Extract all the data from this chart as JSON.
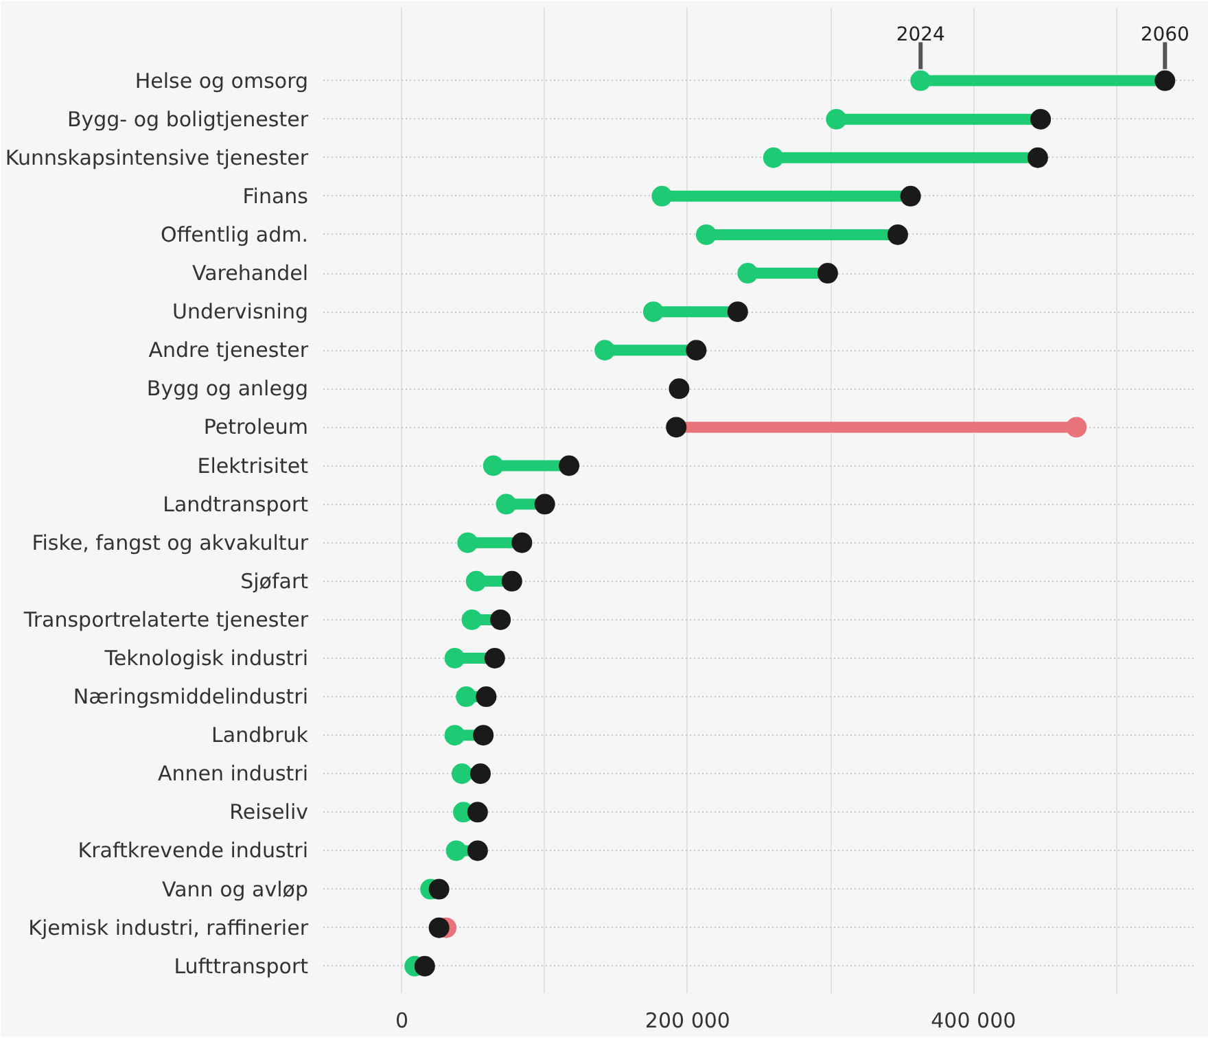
{
  "chart_data": {
    "type": "scatter",
    "categories": [
      "Helse og omsorg",
      "Bygg- og boligtjenester",
      "Kunnskapsintensive tjenester",
      "Finans",
      "Offentlig adm.",
      "Varehandel",
      "Undervisning",
      "Andre tjenester",
      "Bygg og anlegg",
      "Petroleum",
      "Elektrisitet",
      "Landtransport",
      "Fiske, fangst og akvakultur",
      "Sjøfart",
      "Transportrelaterte tjenester",
      "Teknologisk industri",
      "Næringsmiddelindustri",
      "Landbruk",
      "Annen industri",
      "Reiseliv",
      "Kraftkrevende industri",
      "Vann og avløp",
      "Kjemisk industri, raffinerier",
      "Lufttransport"
    ],
    "series": [
      {
        "name": "2024",
        "colors": [
          "#1ecb74",
          "#1ecb74",
          "#1ecb74",
          "#1ecb74",
          "#1ecb74",
          "#1ecb74",
          "#1ecb74",
          "#1ecb74",
          "#1ecb74",
          "#e8737a",
          "#1ecb74",
          "#1ecb74",
          "#1ecb74",
          "#1ecb74",
          "#1ecb74",
          "#1ecb74",
          "#1ecb74",
          "#1ecb74",
          "#1ecb74",
          "#1ecb74",
          "#1ecb74",
          "#1ecb74",
          "#e8737a",
          "#1ecb74"
        ],
        "values": [
          363000,
          304000,
          260000,
          182000,
          213000,
          242000,
          176000,
          142000,
          null,
          472000,
          64000,
          73000,
          46000,
          52000,
          49000,
          37000,
          45000,
          37000,
          42000,
          43000,
          38000,
          20000,
          31000,
          9000
        ]
      },
      {
        "name": "2060",
        "color": "#1a1a1a",
        "values": [
          534000,
          447000,
          445000,
          356000,
          347000,
          298000,
          235000,
          206000,
          194000,
          192000,
          117000,
          100000,
          84000,
          77000,
          69000,
          65000,
          59000,
          57000,
          55000,
          53000,
          53000,
          26000,
          26000,
          16000
        ]
      }
    ],
    "xlim": [
      -55000,
      555000
    ],
    "orientation": "horizontal",
    "xticks": [
      {
        "value": 0,
        "label": "0"
      },
      {
        "value": 100000,
        "label": null
      },
      {
        "value": 200000,
        "label": "200 000"
      },
      {
        "value": 300000,
        "label": null
      },
      {
        "value": 400000,
        "label": "400 000"
      },
      {
        "value": 500000,
        "label": null
      }
    ],
    "grid": true,
    "legend": false,
    "marker": "circle"
  }
}
